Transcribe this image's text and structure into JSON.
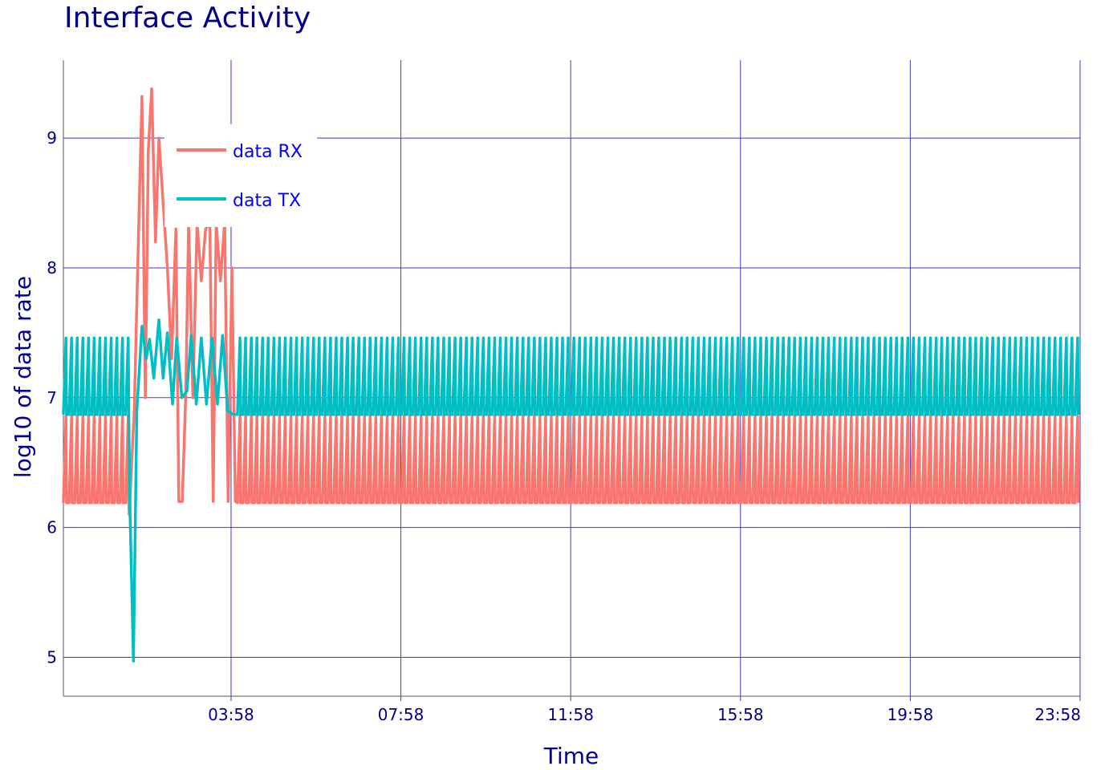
{
  "chart_data": {
    "type": "line",
    "title": "Interface Activity",
    "xlabel": "Time",
    "ylabel": "log10 of data rate",
    "x_ticks": [
      "03:58",
      "07:58",
      "11:58",
      "15:58",
      "19:58",
      "23:58"
    ],
    "x_tick_hours": [
      4,
      8,
      12,
      16,
      20,
      24
    ],
    "xlim_hours": [
      0.05,
      24
    ],
    "y_ticks": [
      "5",
      "6",
      "7",
      "8",
      "9"
    ],
    "y_tick_values": [
      5,
      6,
      7,
      8,
      9
    ],
    "ylim": [
      4.7,
      9.6
    ],
    "grid": true,
    "legend_position": "top-left",
    "series": [
      {
        "name": "data RX",
        "color": "#f8766d",
        "base": 6.19,
        "peak": 6.86,
        "cycle_minutes": 8,
        "burst": [
          [
            1.6,
            6.1
          ],
          [
            1.72,
            6.9
          ],
          [
            1.8,
            8.0
          ],
          [
            1.9,
            9.32
          ],
          [
            1.98,
            7.0
          ],
          [
            2.05,
            8.9
          ],
          [
            2.13,
            9.38
          ],
          [
            2.22,
            8.2
          ],
          [
            2.3,
            9.0
          ],
          [
            2.4,
            8.5
          ],
          [
            2.5,
            8.0
          ],
          [
            2.6,
            7.3
          ],
          [
            2.7,
            8.3
          ],
          [
            2.77,
            6.2
          ],
          [
            2.85,
            6.2
          ],
          [
            2.93,
            7.0
          ],
          [
            3.0,
            8.35
          ],
          [
            3.1,
            7.0
          ],
          [
            3.2,
            8.35
          ],
          [
            3.3,
            7.9
          ],
          [
            3.4,
            8.3
          ],
          [
            3.5,
            8.35
          ],
          [
            3.58,
            6.2
          ],
          [
            3.65,
            8.35
          ],
          [
            3.75,
            7.9
          ],
          [
            3.85,
            8.35
          ],
          [
            3.93,
            6.2
          ],
          [
            4.02,
            8.0
          ],
          [
            4.1,
            6.2
          ]
        ]
      },
      {
        "name": "data TX",
        "color": "#00bfc4",
        "base": 6.87,
        "peak": 7.46,
        "cycle_minutes": 8,
        "burst": [
          [
            1.62,
            6.1
          ],
          [
            1.7,
            4.97
          ],
          [
            1.78,
            6.9
          ],
          [
            1.9,
            7.55
          ],
          [
            2.0,
            7.3
          ],
          [
            2.08,
            7.45
          ],
          [
            2.18,
            7.15
          ],
          [
            2.3,
            7.6
          ],
          [
            2.4,
            7.15
          ],
          [
            2.5,
            7.5
          ],
          [
            2.62,
            6.95
          ],
          [
            2.72,
            7.46
          ],
          [
            2.84,
            7.0
          ],
          [
            2.96,
            7.05
          ],
          [
            3.06,
            7.48
          ],
          [
            3.18,
            6.95
          ],
          [
            3.3,
            7.46
          ],
          [
            3.42,
            6.95
          ],
          [
            3.55,
            7.46
          ],
          [
            3.68,
            6.95
          ],
          [
            3.8,
            7.48
          ],
          [
            3.92,
            6.9
          ],
          [
            4.05,
            6.87
          ]
        ]
      }
    ]
  }
}
